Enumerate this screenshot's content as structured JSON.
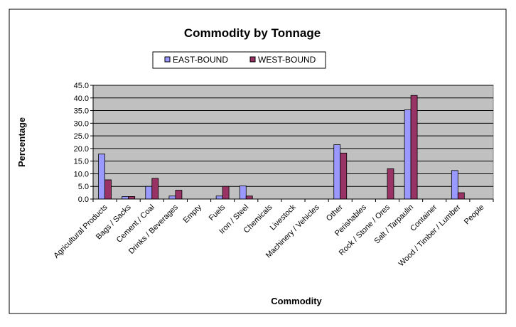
{
  "chart_data": {
    "type": "bar",
    "title": "Commodity by Tonnage",
    "xlabel": "Commodity",
    "ylabel": "Percentage",
    "ylim": [
      0,
      45
    ],
    "yticks": [
      "0.0",
      "5.0",
      "10.0",
      "15.0",
      "20.0",
      "25.0",
      "30.0",
      "35.0",
      "40.0",
      "45.0"
    ],
    "grid": true,
    "legend_position": "top",
    "categories": [
      "Agricultural Products",
      "Bags / Sacks",
      "Cement / Coal",
      "Drinks / Beverages",
      "Empty",
      "Fuels",
      "Iron / Steel",
      "Chemicals",
      "Livestock",
      "Machinery / Vehicles",
      "Other",
      "Perishables",
      "Rock / Stone / Ores",
      "Salt / Tarpaulin",
      "Container",
      "Wood / Timber / Lumber",
      "People"
    ],
    "series": [
      {
        "name": "EAST-BOUND",
        "color": "#9999ff",
        "values": [
          17.8,
          1.0,
          5.0,
          1.2,
          0,
          1.2,
          5.2,
          0,
          0,
          0,
          21.5,
          0,
          0,
          35.3,
          0,
          11.3,
          0
        ]
      },
      {
        "name": "WEST-BOUND",
        "color": "#993366",
        "values": [
          7.6,
          1.0,
          8.2,
          3.5,
          0,
          5.0,
          1.2,
          0,
          0,
          0,
          18.2,
          0,
          12.0,
          41.0,
          0,
          2.5,
          0
        ]
      }
    ],
    "plot_background": "#c0c0c0"
  }
}
